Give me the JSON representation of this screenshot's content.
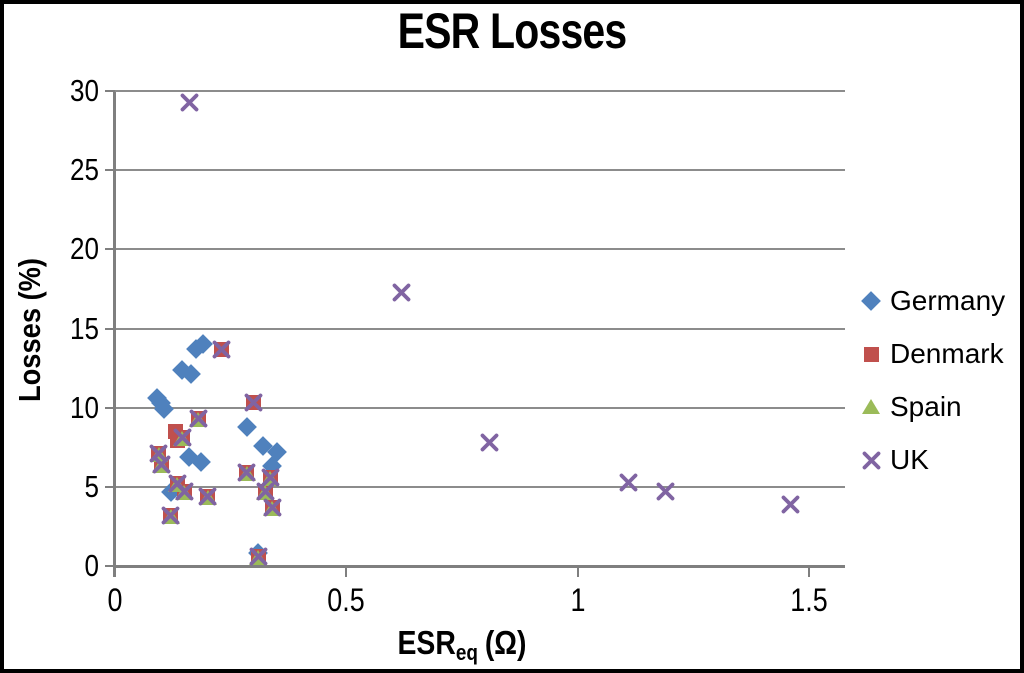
{
  "chart_data": {
    "type": "scatter",
    "title": "ESR Losses",
    "ylabel": "Losses (%)",
    "xlabel": "ESReq (Ω)",
    "xlabel_base": "ESR",
    "xlabel_sub": "eq",
    "xlabel_unit": "(Ω)",
    "xlim": [
      0,
      1.5
    ],
    "ylim": [
      0,
      30
    ],
    "x_ticks": [
      0,
      0.5,
      1,
      1.5
    ],
    "y_ticks": [
      0,
      5,
      10,
      15,
      20,
      25,
      30
    ],
    "grid": "horizontal-only",
    "legend_position": "right",
    "series": [
      {
        "name": "Germany",
        "marker": "diamond",
        "color": "#4F81BD",
        "points": [
          [
            0.19,
            14.0
          ],
          [
            0.175,
            13.7
          ],
          [
            0.145,
            12.4
          ],
          [
            0.165,
            12.1
          ],
          [
            0.09,
            10.6
          ],
          [
            0.1,
            10.3
          ],
          [
            0.105,
            9.9
          ],
          [
            0.285,
            8.8
          ],
          [
            0.16,
            6.9
          ],
          [
            0.185,
            6.6
          ],
          [
            0.32,
            7.6
          ],
          [
            0.35,
            7.2
          ],
          [
            0.34,
            6.3
          ],
          [
            0.12,
            4.7
          ],
          [
            0.31,
            0.8
          ]
        ]
      },
      {
        "name": "Denmark",
        "marker": "square",
        "color": "#C0504D",
        "points": [
          [
            0.23,
            13.7
          ],
          [
            0.3,
            10.3
          ],
          [
            0.18,
            9.3
          ],
          [
            0.13,
            8.5
          ],
          [
            0.145,
            8.1
          ],
          [
            0.135,
            7.9
          ],
          [
            0.095,
            7.1
          ],
          [
            0.1,
            6.4
          ],
          [
            0.285,
            5.9
          ],
          [
            0.335,
            5.6
          ],
          [
            0.135,
            5.2
          ],
          [
            0.15,
            4.7
          ],
          [
            0.2,
            4.4
          ],
          [
            0.325,
            4.7
          ],
          [
            0.34,
            3.7
          ],
          [
            0.12,
            3.2
          ],
          [
            0.31,
            0.6
          ]
        ]
      },
      {
        "name": "Spain",
        "marker": "triangle",
        "color": "#9BBB59",
        "points": [
          [
            0.18,
            9.2
          ],
          [
            0.145,
            8.0
          ],
          [
            0.095,
            7.0
          ],
          [
            0.1,
            6.3
          ],
          [
            0.285,
            5.8
          ],
          [
            0.335,
            5.5
          ],
          [
            0.135,
            5.1
          ],
          [
            0.15,
            4.6
          ],
          [
            0.2,
            4.3
          ],
          [
            0.325,
            4.6
          ],
          [
            0.34,
            3.6
          ],
          [
            0.12,
            3.1
          ],
          [
            0.31,
            0.5
          ]
        ]
      },
      {
        "name": "UK",
        "marker": "x",
        "color": "#8064A2",
        "points": [
          [
            0.16,
            29.3
          ],
          [
            0.62,
            17.3
          ],
          [
            0.81,
            7.8
          ],
          [
            1.11,
            5.3
          ],
          [
            1.19,
            4.7
          ],
          [
            1.46,
            3.9
          ],
          [
            0.23,
            13.7
          ],
          [
            0.3,
            10.3
          ],
          [
            0.18,
            9.3
          ],
          [
            0.145,
            8.1
          ],
          [
            0.095,
            7.1
          ],
          [
            0.1,
            6.4
          ],
          [
            0.285,
            5.9
          ],
          [
            0.335,
            5.6
          ],
          [
            0.135,
            5.2
          ],
          [
            0.15,
            4.7
          ],
          [
            0.2,
            4.4
          ],
          [
            0.325,
            4.7
          ],
          [
            0.34,
            3.7
          ],
          [
            0.12,
            3.2
          ],
          [
            0.31,
            0.6
          ]
        ]
      }
    ]
  }
}
